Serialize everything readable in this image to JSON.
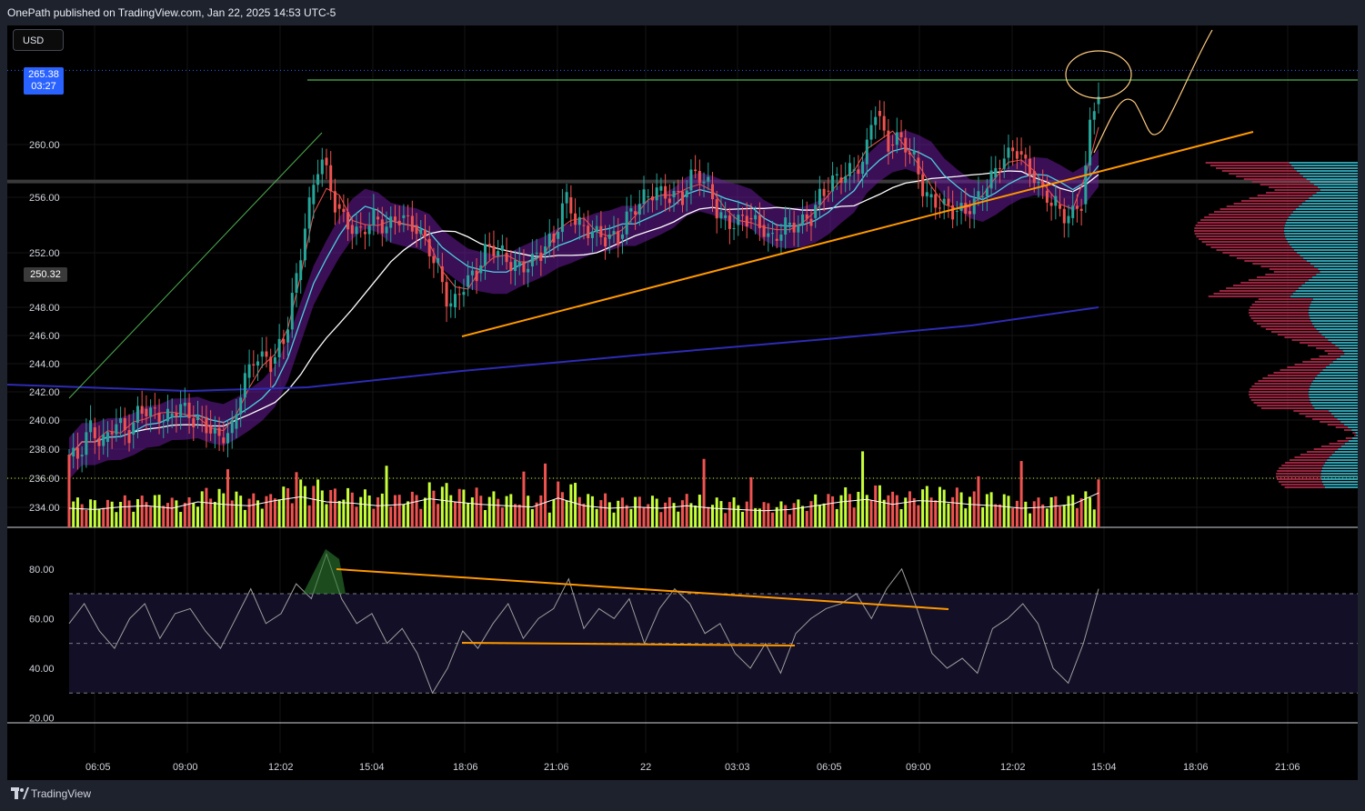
{
  "header": {
    "publisher": "OnePath published on TradingView.com, Jan 22, 2025 14:53 UTC-5"
  },
  "toolbar": {
    "currency": "USD"
  },
  "price_badge": {
    "price": "265.38",
    "countdown": "03:27"
  },
  "price_badge_secondary": {
    "price": "250.32"
  },
  "footer": {
    "brand": "TradingView"
  },
  "colors": {
    "background": "#000000",
    "candle_up": "#26a69a",
    "candle_down": "#ef5350",
    "volume_up": "#c6ff3a",
    "volume_down": "#ef5350",
    "ma_fast": "#ef5350",
    "ma_mid": "#4dd0e1",
    "ma_slow": "#ffffff",
    "ma_long": "#2e2bb5",
    "band": "#6a1b9a",
    "trendline_orange": "#ff9800",
    "trendline_green": "#4caf50",
    "rsi_line": "#9e9e9e",
    "projection": "#ffcc80"
  },
  "chart_data": [
    {
      "type": "candlestick",
      "title": "",
      "y_ticks": [
        "260.00",
        "256.00",
        "252.00",
        "248.00",
        "246.00",
        "244.00",
        "242.00",
        "240.00",
        "238.00",
        "236.00",
        "234.00"
      ],
      "x_ticks": [
        "06:05",
        "09:00",
        "12:02",
        "15:04",
        "18:06",
        "21:06",
        "22",
        "03:03",
        "06:05",
        "09:00",
        "12:02",
        "15:04",
        "18:06",
        "21:06"
      ],
      "ylim": [
        233,
        268
      ],
      "last_price": 265.38,
      "horizontal_levels": [
        265.38,
        257.2,
        236.0
      ],
      "close_series": [
        {
          "t": 0,
          "v": 237.5
        },
        {
          "t": 3,
          "v": 239.5
        },
        {
          "t": 6,
          "v": 238.5
        },
        {
          "t": 9,
          "v": 239.8
        },
        {
          "t": 12,
          "v": 239.0
        },
        {
          "t": 15,
          "v": 240.8
        },
        {
          "t": 18,
          "v": 240.5
        },
        {
          "t": 21,
          "v": 240.2
        },
        {
          "t": 24,
          "v": 241.0
        },
        {
          "t": 27,
          "v": 240.0
        },
        {
          "t": 30,
          "v": 239.6
        },
        {
          "t": 33,
          "v": 238.8
        },
        {
          "t": 36,
          "v": 239.4
        },
        {
          "t": 39,
          "v": 243.0
        },
        {
          "t": 42,
          "v": 244.5
        },
        {
          "t": 45,
          "v": 244.0
        },
        {
          "t": 48,
          "v": 245.5
        },
        {
          "t": 51,
          "v": 250.0
        },
        {
          "t": 54,
          "v": 255.5
        },
        {
          "t": 57,
          "v": 259.0
        },
        {
          "t": 60,
          "v": 255.5
        },
        {
          "t": 63,
          "v": 254.0
        },
        {
          "t": 66,
          "v": 253.5
        },
        {
          "t": 69,
          "v": 254.6
        },
        {
          "t": 72,
          "v": 253.8
        },
        {
          "t": 75,
          "v": 254.5
        },
        {
          "t": 78,
          "v": 254.0
        },
        {
          "t": 81,
          "v": 253.0
        },
        {
          "t": 84,
          "v": 251.0
        },
        {
          "t": 87,
          "v": 248.0
        },
        {
          "t": 90,
          "v": 249.5
        },
        {
          "t": 93,
          "v": 250.5
        },
        {
          "t": 96,
          "v": 252.5
        },
        {
          "t": 99,
          "v": 252.0
        },
        {
          "t": 102,
          "v": 251.0
        },
        {
          "t": 105,
          "v": 251.0
        },
        {
          "t": 108,
          "v": 252.0
        },
        {
          "t": 111,
          "v": 253.0
        },
        {
          "t": 114,
          "v": 256.0
        },
        {
          "t": 117,
          "v": 254.0
        },
        {
          "t": 120,
          "v": 253.5
        },
        {
          "t": 123,
          "v": 253.0
        },
        {
          "t": 126,
          "v": 253.0
        },
        {
          "t": 129,
          "v": 255.0
        },
        {
          "t": 132,
          "v": 256.0
        },
        {
          "t": 135,
          "v": 256.5
        },
        {
          "t": 138,
          "v": 256.0
        },
        {
          "t": 141,
          "v": 256.0
        },
        {
          "t": 144,
          "v": 258.0
        },
        {
          "t": 147,
          "v": 257.0
        },
        {
          "t": 150,
          "v": 254.5
        },
        {
          "t": 153,
          "v": 254.0
        },
        {
          "t": 156,
          "v": 254.5
        },
        {
          "t": 159,
          "v": 254.0
        },
        {
          "t": 162,
          "v": 253.0
        },
        {
          "t": 165,
          "v": 254.0
        },
        {
          "t": 168,
          "v": 254.0
        },
        {
          "t": 171,
          "v": 254.5
        },
        {
          "t": 174,
          "v": 256.5
        },
        {
          "t": 177,
          "v": 257.5
        },
        {
          "t": 180,
          "v": 258.0
        },
        {
          "t": 183,
          "v": 258.5
        },
        {
          "t": 186,
          "v": 262.5
        },
        {
          "t": 189,
          "v": 260.0
        },
        {
          "t": 192,
          "v": 260.5
        },
        {
          "t": 195,
          "v": 259.0
        },
        {
          "t": 198,
          "v": 256.0
        },
        {
          "t": 201,
          "v": 255.5
        },
        {
          "t": 204,
          "v": 255.0
        },
        {
          "t": 207,
          "v": 255.0
        },
        {
          "t": 210,
          "v": 256.0
        },
        {
          "t": 213,
          "v": 257.5
        },
        {
          "t": 216,
          "v": 259.0
        },
        {
          "t": 219,
          "v": 259.5
        },
        {
          "t": 222,
          "v": 258.0
        },
        {
          "t": 225,
          "v": 256.5
        },
        {
          "t": 228,
          "v": 255.5
        },
        {
          "t": 231,
          "v": 254.5
        },
        {
          "t": 234,
          "v": 255.5
        },
        {
          "t": 237,
          "v": 263.0
        },
        {
          "t": 240,
          "v": 265.38
        }
      ],
      "volume_series": [
        {
          "t": 0,
          "v": 30
        },
        {
          "t": 6,
          "v": 28
        },
        {
          "t": 12,
          "v": 32
        },
        {
          "t": 18,
          "v": 34
        },
        {
          "t": 24,
          "v": 30
        },
        {
          "t": 30,
          "v": 40
        },
        {
          "t": 36,
          "v": 36
        },
        {
          "t": 42,
          "v": 34
        },
        {
          "t": 48,
          "v": 42
        },
        {
          "t": 54,
          "v": 48
        },
        {
          "t": 60,
          "v": 40
        },
        {
          "t": 66,
          "v": 38
        },
        {
          "t": 72,
          "v": 34
        },
        {
          "t": 78,
          "v": 36
        },
        {
          "t": 84,
          "v": 45
        },
        {
          "t": 90,
          "v": 40
        },
        {
          "t": 96,
          "v": 36
        },
        {
          "t": 102,
          "v": 34
        },
        {
          "t": 108,
          "v": 32
        },
        {
          "t": 114,
          "v": 46
        },
        {
          "t": 120,
          "v": 34
        },
        {
          "t": 126,
          "v": 30
        },
        {
          "t": 132,
          "v": 32
        },
        {
          "t": 138,
          "v": 30
        },
        {
          "t": 144,
          "v": 34
        },
        {
          "t": 150,
          "v": 30
        },
        {
          "t": 156,
          "v": 28
        },
        {
          "t": 162,
          "v": 26
        },
        {
          "t": 168,
          "v": 28
        },
        {
          "t": 174,
          "v": 34
        },
        {
          "t": 180,
          "v": 40
        },
        {
          "t": 186,
          "v": 44
        },
        {
          "t": 192,
          "v": 36
        },
        {
          "t": 198,
          "v": 42
        },
        {
          "t": 204,
          "v": 40
        },
        {
          "t": 210,
          "v": 36
        },
        {
          "t": 216,
          "v": 34
        },
        {
          "t": 222,
          "v": 30
        },
        {
          "t": 228,
          "v": 32
        },
        {
          "t": 234,
          "v": 36
        },
        {
          "t": 240,
          "v": 54
        }
      ]
    },
    {
      "type": "line",
      "title": "",
      "y_ticks": [
        "80.00",
        "60.00",
        "40.00",
        "20.00"
      ],
      "ylim": [
        18,
        92
      ],
      "band": [
        30,
        70
      ],
      "midline": 50,
      "series": [
        {
          "values": [
            58,
            66,
            55,
            48,
            60,
            66,
            52,
            62,
            64,
            55,
            48,
            60,
            72,
            58,
            62,
            74,
            68,
            86,
            68,
            58,
            62,
            50,
            56,
            46,
            30,
            40,
            55,
            48,
            58,
            66,
            52,
            60,
            64,
            76,
            56,
            64,
            60,
            68,
            50,
            64,
            72,
            66,
            54,
            58,
            46,
            40,
            50,
            38,
            54,
            60,
            64,
            66,
            70,
            60,
            72,
            80,
            64,
            46,
            40,
            44,
            38,
            56,
            60,
            66,
            58,
            40,
            34,
            50,
            72
          ]
        }
      ]
    }
  ]
}
